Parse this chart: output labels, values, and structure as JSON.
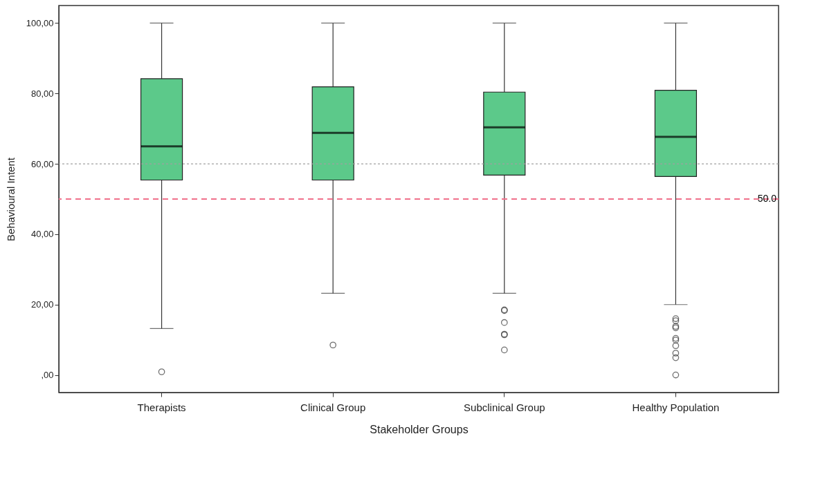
{
  "chart_data": {
    "type": "box",
    "xlabel": "Stakeholder Groups",
    "ylabel": "Behavioural Intent",
    "categories": [
      "Therapists",
      "Clinical Group",
      "Subclinical Group",
      "Healthy Population"
    ],
    "color": "#5cc98a",
    "boxes": [
      {
        "low": 13.2,
        "q1": 55.4,
        "median": 65.0,
        "q3": 84.2,
        "high": 100,
        "outliers": [
          0.9
        ]
      },
      {
        "low": 23.2,
        "q1": 55.4,
        "median": 68.8,
        "q3": 81.9,
        "high": 100,
        "outliers": [
          8.5
        ]
      },
      {
        "low": 23.2,
        "q1": 56.8,
        "median": 70.4,
        "q3": 80.4,
        "high": 100,
        "outliers": [
          18.5,
          18.3,
          14.9,
          11.6,
          11.4,
          7.1
        ]
      },
      {
        "low": 20.0,
        "q1": 56.4,
        "median": 67.7,
        "q3": 80.9,
        "high": 100,
        "outliers": [
          16.0,
          15.4,
          13.8,
          13.4,
          10.4,
          9.9,
          8.3,
          6.2,
          4.9,
          0
        ]
      }
    ],
    "ylim": [
      -5,
      105
    ],
    "yticks": [
      {
        "value": 0,
        "label": ",00"
      },
      {
        "value": 20,
        "label": "20,00"
      },
      {
        "value": 40,
        "label": "40,00"
      },
      {
        "value": 60,
        "label": "60,00"
      },
      {
        "value": 80,
        "label": "80,00"
      },
      {
        "value": 100,
        "label": "100,00"
      }
    ],
    "ref_lines": [
      {
        "axis": "y",
        "value": 60,
        "color": "#a0a0a0",
        "line_style": "dotted"
      },
      {
        "axis": "y",
        "value": 50,
        "label": "50.0",
        "color": "#f0708a",
        "line_style": "dashed"
      }
    ],
    "grid": false
  }
}
